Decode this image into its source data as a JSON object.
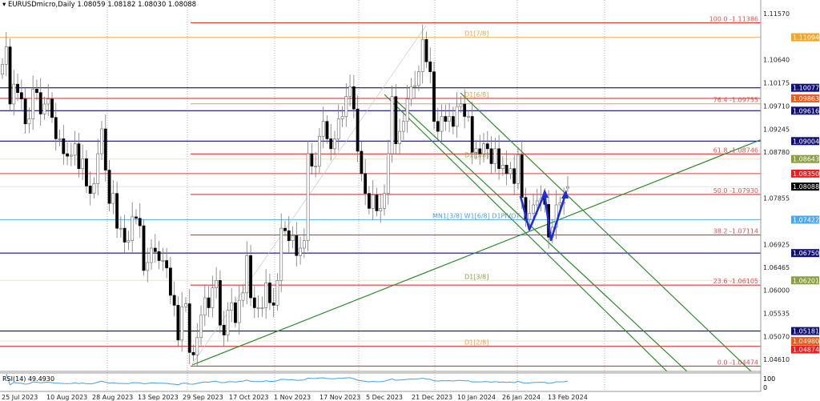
{
  "header": {
    "symbol_title": "EURUSDmicro,Daily  1.08059 1.08182 1.08030 1.08088",
    "collapse_icon": "triangle-down-icon"
  },
  "rsi": {
    "label": "RSI(14) 49.4930",
    "axis": [
      "100",
      "0"
    ],
    "color": "#4a9fe0"
  },
  "chart_data": {
    "type": "candlestick",
    "symbol": "EURUSDmicro",
    "timeframe": "Daily",
    "ohlc_last": {
      "open": 1.08059,
      "high": 1.08182,
      "low": 1.0803,
      "close": 1.08088
    },
    "x_ticks": [
      "25 Jul 2023",
      "10 Aug 2023",
      "28 Aug 2023",
      "13 Sep 2023",
      "29 Sep 2023",
      "17 Oct 2023",
      "1 Nov 2023",
      "17 Nov 2023",
      "5 Dec 2023",
      "21 Dec 2023",
      "10 Jan 2024",
      "26 Jan 2024",
      "13 Feb 2024"
    ],
    "y_ticks": [
      "1.11570",
      "1.10640",
      "1.10175",
      "1.09710",
      "1.09245",
      "1.08780",
      "1.07855",
      "1.06925",
      "1.06465",
      "1.06000",
      "1.05535",
      "1.05070",
      "1.04610"
    ],
    "ylim": [
      1.0445,
      1.1185
    ],
    "close": [
      1.1055,
      1.109,
      1.0975,
      1.1015,
      1.0998,
      1.0985,
      1.0935,
      1.0945,
      1.1005,
      1.0998,
      1.0955,
      1.0975,
      1.0985,
      1.0948,
      1.0905,
      1.0905,
      1.0875,
      1.087,
      1.0872,
      1.0895,
      1.0845,
      1.0865,
      1.081,
      1.0795,
      1.0815,
      1.0875,
      1.0925,
      1.0842,
      1.0775,
      1.0795,
      1.0725,
      1.0725,
      1.0697,
      1.07,
      1.0748,
      1.0745,
      1.073,
      1.064,
      1.0656,
      1.0685,
      1.0678,
      1.066,
      1.066,
      1.0645,
      1.059,
      1.057,
      1.05,
      1.0567,
      1.0573,
      1.0475,
      1.047,
      1.0505,
      1.055,
      1.0585,
      1.0565,
      1.0605,
      1.062,
      1.053,
      1.051,
      1.056,
      1.0575,
      1.0535,
      1.058,
      1.0595,
      1.067,
      1.0585,
      1.0565,
      1.0565,
      1.0565,
      1.0615,
      1.0575,
      1.057,
      1.062,
      1.0725,
      1.072,
      1.07,
      1.071,
      1.067,
      1.0685,
      1.07,
      1.0875,
      1.085,
      1.085,
      1.091,
      1.094,
      1.0905,
      1.0885,
      1.0905,
      1.0945,
      1.095,
      1.099,
      1.101,
      1.0965,
      1.088,
      1.0835,
      1.0795,
      1.0765,
      1.0792,
      1.076,
      1.0765,
      1.0795,
      1.0875,
      1.099,
      1.0895,
      1.092,
      1.094,
      1.0985,
      1.101,
      1.1012,
      1.104,
      1.1105,
      1.106,
      1.104,
      1.094,
      1.092,
      1.095,
      1.094,
      1.095,
      1.093,
      1.097,
      1.0975,
      1.095,
      1.095,
      1.0878,
      1.0885,
      1.0875,
      1.0895,
      1.0885,
      1.0855,
      1.0885,
      1.0845,
      1.0852,
      1.0835,
      1.0845,
      1.0815,
      1.0873,
      1.0787,
      1.0743,
      1.0755,
      1.0772,
      1.078,
      1.0785,
      1.0773,
      1.0707,
      1.0727,
      1.0772,
      1.0776,
      1.0777,
      1.0809
    ],
    "levels": [
      {
        "price": 1.11386,
        "color": "#e03a3a",
        "text": "100.0 -1.11386",
        "fib": true
      },
      {
        "price": 1.11094,
        "color": "#f3c07a",
        "text": "D1[7/8]",
        "mid": true,
        "axis": "1.11094",
        "axis_bg": "#f5a623"
      },
      {
        "price": 1.10077,
        "color": "#10107a",
        "axis": "1.10077",
        "axis_bg": "#10107a"
      },
      {
        "price": 1.09863,
        "color": "#e03a3a",
        "text": "D1[6/8]",
        "mid": true,
        "axis": "1.09863",
        "axis_bg": "#f05a1a"
      },
      {
        "price": 1.09755,
        "color": "#e8a0a0",
        "text": "76.4 -1.09755",
        "fib": true
      },
      {
        "price": 1.09616,
        "color": "#10107a",
        "axis": "1.09616",
        "axis_bg": "#10107a"
      },
      {
        "price": 1.09004,
        "color": "#10107a",
        "axis": "1.09004",
        "axis_bg": "#10107a"
      },
      {
        "price": 1.08746,
        "color": "#e03a3a",
        "text": "61.8 -1.08746",
        "fib": true
      },
      {
        "price": 1.08643,
        "color": "#f0e4d0",
        "text": "D1[5/8]",
        "mid": true,
        "textcolor": "#8aa040",
        "axis": "1.08643",
        "axis_bg": "#8aa040"
      },
      {
        "price": 1.0835,
        "color": "#e03a3a",
        "axis": "1.08350",
        "axis_bg": "#ee1c1c"
      },
      {
        "price": 1.08088,
        "color": "#e8e8e8",
        "axis": "1.08088",
        "axis_bg": "#000000"
      },
      {
        "price": 1.0793,
        "color": "#e03a3a",
        "text": "50.0 -1.07930",
        "fib": true
      },
      {
        "price": 1.07422,
        "color": "#6ab8f0",
        "text": "MN1[3/8] W1[6/8] D1PIVOT",
        "mid": true,
        "textcolor": "#4a9fe0",
        "axis": "1.07422",
        "axis_bg": "#4aa8f0"
      },
      {
        "price": 1.07114,
        "color": "#e03a3a",
        "text": "38.2 -1.07114",
        "fib": true
      },
      {
        "price": 1.0675,
        "color": "#10107a",
        "axis": "1.06750",
        "axis_bg": "#10107a"
      },
      {
        "price": 1.06201,
        "color": "#f0e4d0",
        "text": "D1[3/8]",
        "mid": true,
        "textcolor": "#8aa040",
        "axis": "1.06201",
        "axis_bg": "#8aa040"
      },
      {
        "price": 1.06105,
        "color": "#e03a3a",
        "text": "23.6 -1.06105",
        "fib": true
      },
      {
        "price": 1.05181,
        "color": "#10107a",
        "axis": "1.05181",
        "axis_bg": "#10107a"
      },
      {
        "price": 1.0498,
        "color": "#f0e4d0",
        "axis": "1.04980",
        "axis_bg": "#f05a1a"
      },
      {
        "price": 1.04874,
        "color": "#e03a3a",
        "text": "D1[2/8]",
        "mid": true,
        "axis": "1.04874",
        "axis_bg": "#ee1c1c"
      },
      {
        "price": 1.04474,
        "color": "#e03a3a",
        "text": "0.0 -1.04474",
        "fib": true
      }
    ],
    "colors": {
      "bull_body": "#ffffff",
      "bear_body": "#000000",
      "trendline": "#2e8b2e",
      "zigzag": "#1a2ee0"
    }
  }
}
